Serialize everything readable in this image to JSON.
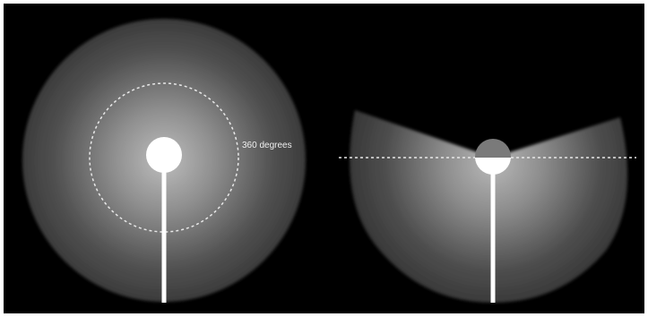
{
  "diagram": {
    "left": {
      "label": "360 degrees"
    }
  },
  "colors": {
    "background": "#000000",
    "light_center": "#a8a8a8",
    "light_edge": "#3e3e3e",
    "fixture": "#ffffff",
    "dashed_line": "#e8e8e8",
    "label_text": "#f0f0f0",
    "bulb_upper": "#7a7a7a"
  }
}
